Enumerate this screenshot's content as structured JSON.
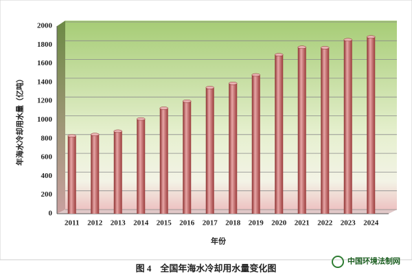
{
  "chart_data": {
    "type": "bar",
    "y_label": "年海水冷却用水量（亿吨）",
    "x_label": "年份",
    "categories": [
      "2011",
      "2012",
      "2013",
      "2014",
      "2015",
      "2016",
      "2017",
      "2018",
      "2019",
      "2020",
      "2021",
      "2022",
      "2023",
      "2024"
    ],
    "values": [
      830,
      845,
      880,
      1010,
      1125,
      1200,
      1345,
      1390,
      1480,
      1695,
      1775,
      1770,
      1855,
      1885
    ],
    "color": "#c0504d",
    "ylim": [
      0,
      2000
    ],
    "yticks": [
      0,
      200,
      400,
      600,
      800,
      1000,
      1200,
      1400,
      1600,
      1800,
      2000
    ],
    "grid": true
  },
  "caption": "图 4　全国年海水冷却用水量变化图",
  "watermark": "中国环境法制网"
}
